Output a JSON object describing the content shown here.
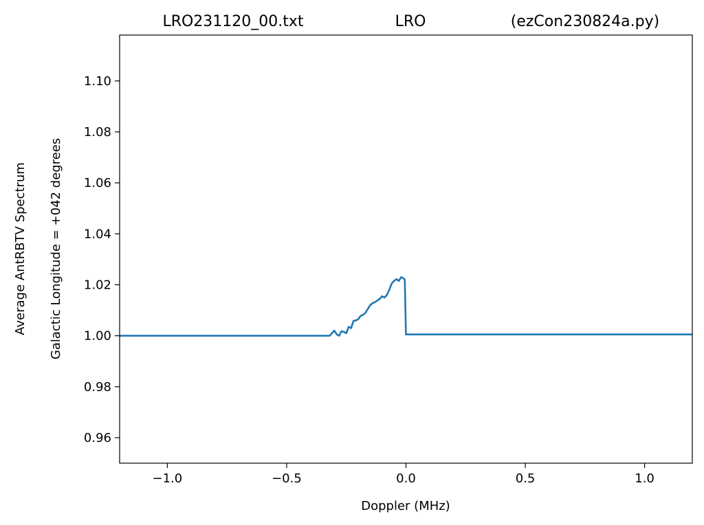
{
  "chart_data": {
    "type": "line",
    "title_parts": {
      "left": "LRO231120_00.txt",
      "center": "LRO",
      "right": "(ezCon230824a.py)"
    },
    "xlabel": "Doppler (MHz)",
    "ylabel_lines": [
      "Average AntRBTV Spectrum",
      "Galactic Longitude = +042 degrees"
    ],
    "xlim": [
      -1.2,
      1.2
    ],
    "ylim": [
      0.95,
      1.118
    ],
    "x_ticks": [
      {
        "value": -1.0,
        "label": "−1.0"
      },
      {
        "value": -0.5,
        "label": "−0.5"
      },
      {
        "value": 0.0,
        "label": "0.0"
      },
      {
        "value": 0.5,
        "label": "0.5"
      },
      {
        "value": 1.0,
        "label": "1.0"
      }
    ],
    "y_ticks": [
      {
        "value": 0.96,
        "label": "0.96"
      },
      {
        "value": 0.98,
        "label": "0.98"
      },
      {
        "value": 1.0,
        "label": "1.00"
      },
      {
        "value": 1.02,
        "label": "1.02"
      },
      {
        "value": 1.04,
        "label": "1.04"
      },
      {
        "value": 1.06,
        "label": "1.06"
      },
      {
        "value": 1.08,
        "label": "1.08"
      },
      {
        "value": 1.1,
        "label": "1.10"
      }
    ],
    "grid": false,
    "series": [
      {
        "color": "#1f77b4",
        "x": [
          -1.2,
          -0.32,
          -0.31,
          -0.3,
          -0.29,
          -0.28,
          -0.27,
          -0.26,
          -0.25,
          -0.24,
          -0.23,
          -0.22,
          -0.21,
          -0.2,
          -0.19,
          -0.18,
          -0.17,
          -0.16,
          -0.15,
          -0.14,
          -0.13,
          -0.12,
          -0.11,
          -0.1,
          -0.09,
          -0.08,
          -0.07,
          -0.06,
          -0.05,
          -0.04,
          -0.03,
          -0.02,
          -0.01,
          -0.005,
          0.0,
          1.2
        ],
        "y": [
          1.0,
          1.0,
          1.001,
          1.002,
          1.0005,
          1.0,
          1.0018,
          1.0015,
          1.001,
          1.0035,
          1.003,
          1.0058,
          1.006,
          1.0065,
          1.0078,
          1.0082,
          1.009,
          1.0105,
          1.012,
          1.0128,
          1.0132,
          1.0138,
          1.0145,
          1.0155,
          1.015,
          1.016,
          1.018,
          1.0205,
          1.0215,
          1.0222,
          1.0215,
          1.023,
          1.0225,
          1.022,
          1.0005,
          1.0005
        ]
      }
    ]
  }
}
